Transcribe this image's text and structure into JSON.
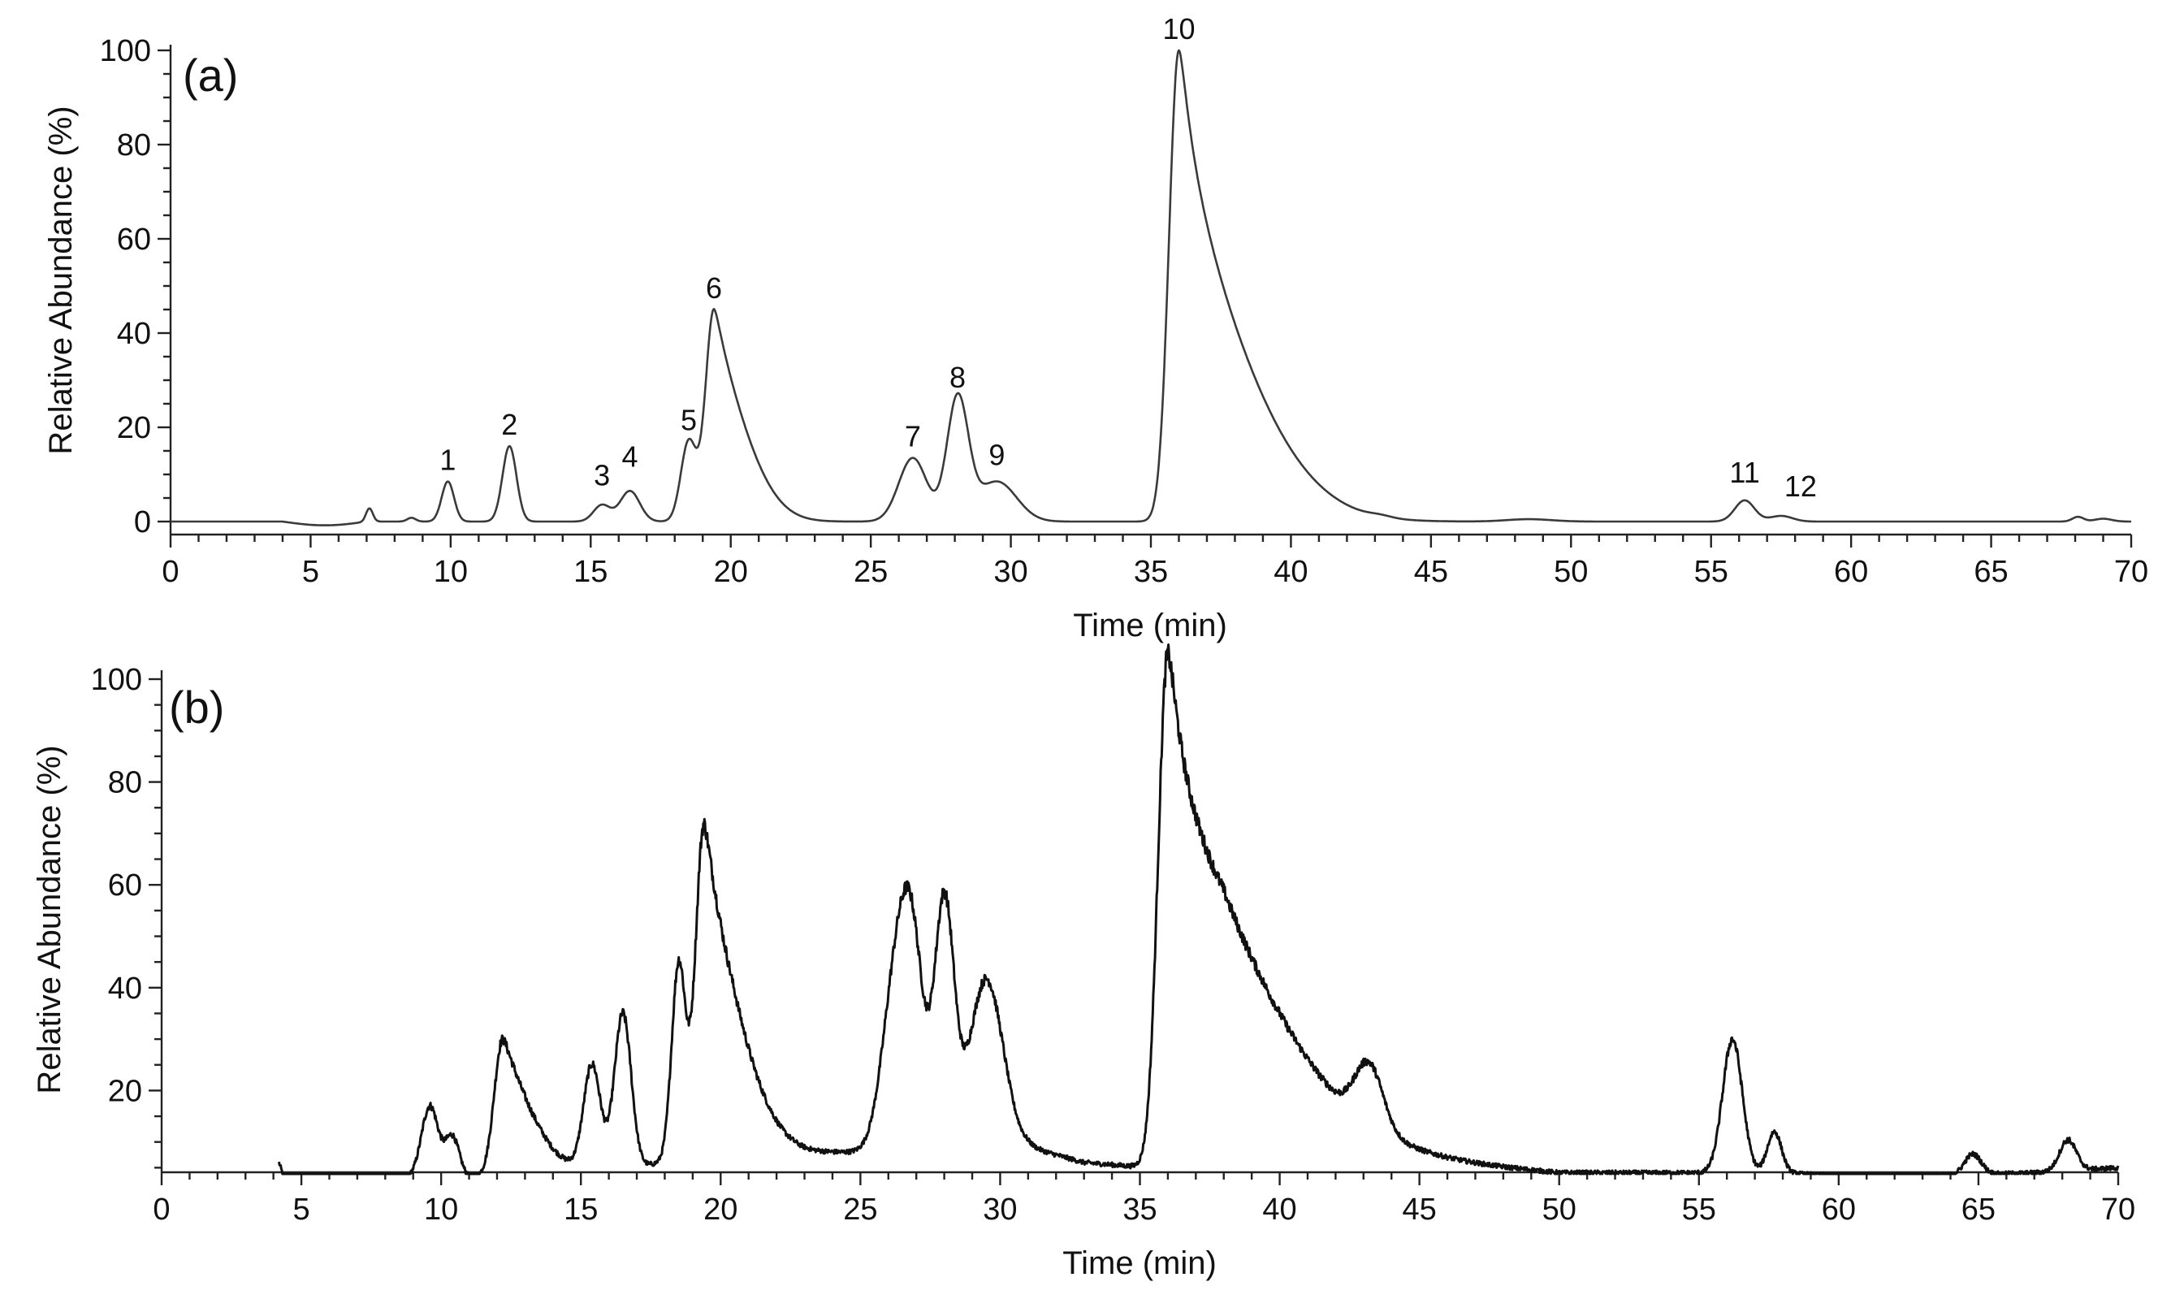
{
  "chart_data": [
    {
      "type": "line",
      "panel_label": "(a)",
      "xlabel": "Time (min)",
      "ylabel": "Relative Abundance (%)",
      "xlim": [
        0,
        70
      ],
      "ylim": [
        -2,
        100
      ],
      "xticks": [
        0,
        5,
        10,
        15,
        20,
        25,
        30,
        35,
        40,
        45,
        50,
        55,
        60,
        65,
        70
      ],
      "yticks": [
        0,
        20,
        40,
        60,
        80,
        100
      ],
      "grid": false,
      "baseline": 0,
      "peaks": [
        {
          "label": "1",
          "x": 9.9,
          "y": 8.5,
          "w": 0.22
        },
        {
          "label": "2",
          "x": 12.1,
          "y": 16,
          "w": 0.25
        },
        {
          "label": "3",
          "x": 15.4,
          "y": 3.5,
          "w": 0.3
        },
        {
          "label": "4",
          "x": 16.4,
          "y": 6.5,
          "w": 0.35
        },
        {
          "label": "5",
          "x": 18.5,
          "y": 17,
          "w": 0.28
        },
        {
          "label": "6",
          "x": 19.4,
          "y": 45,
          "w": 0.3,
          "tail": 0.9
        },
        {
          "label": "7",
          "x": 26.5,
          "y": 13.5,
          "w": 0.5
        },
        {
          "label": "8",
          "x": 28.1,
          "y": 26,
          "w": 0.38
        },
        {
          "label": "9",
          "x": 29.5,
          "y": 8.5,
          "w": 0.7
        },
        {
          "label": "10",
          "x": 36.0,
          "y": 100,
          "w": 0.35,
          "tail": 2.2
        },
        {
          "label": "11",
          "x": 56.2,
          "y": 4.5,
          "w": 0.35
        },
        {
          "label": "12",
          "x": 57.5,
          "y": 1.2,
          "w": 0.4
        }
      ],
      "minor_peaks": [
        {
          "x": 7.1,
          "y": 2.8,
          "w": 0.12
        },
        {
          "x": 8.6,
          "y": 0.8,
          "w": 0.15
        },
        {
          "x": 43.2,
          "y": 0.4,
          "w": 0.4
        },
        {
          "x": 48.5,
          "y": 0.5,
          "w": 0.8
        },
        {
          "x": 68.1,
          "y": 1.0,
          "w": 0.2
        },
        {
          "x": 69.0,
          "y": 0.6,
          "w": 0.3
        }
      ]
    },
    {
      "type": "line",
      "panel_label": "(b)",
      "xlabel": "Time (min)",
      "ylabel": "Relative Abundance (%)",
      "xlim": [
        0,
        70
      ],
      "ylim": [
        0,
        100
      ],
      "xticks": [
        0,
        5,
        10,
        15,
        20,
        25,
        30,
        35,
        40,
        45,
        50,
        55,
        60,
        65,
        70
      ],
      "yticks": [
        20,
        40,
        60,
        80,
        100
      ],
      "grid": false,
      "noise": 0.9,
      "peaks": [
        {
          "x": 9.6,
          "y": 14,
          "w": 0.3
        },
        {
          "x": 10.4,
          "y": 8,
          "w": 0.25
        },
        {
          "x": 12.2,
          "y": 26,
          "w": 0.3,
          "tail": 0.7
        },
        {
          "x": 15.4,
          "y": 20,
          "w": 0.3
        },
        {
          "x": 16.5,
          "y": 30,
          "w": 0.3
        },
        {
          "x": 18.5,
          "y": 38,
          "w": 0.25
        },
        {
          "x": 19.4,
          "y": 64,
          "w": 0.3,
          "tail": 1.0
        },
        {
          "x": 26.3,
          "y": 34,
          "w": 0.5
        },
        {
          "x": 26.9,
          "y": 30,
          "w": 0.4
        },
        {
          "x": 28.0,
          "y": 48,
          "w": 0.35
        },
        {
          "x": 29.5,
          "y": 33,
          "w": 0.6
        },
        {
          "x": 36.0,
          "y": 98,
          "w": 0.35,
          "tail": 3.2
        },
        {
          "x": 43.2,
          "y": 12,
          "w": 0.5
        },
        {
          "x": 56.2,
          "y": 26,
          "w": 0.35
        },
        {
          "x": 57.7,
          "y": 8,
          "w": 0.25
        },
        {
          "x": 64.8,
          "y": 4,
          "w": 0.3
        },
        {
          "x": 68.2,
          "y": 6,
          "w": 0.3
        }
      ],
      "background": [
        [
          4.2,
          6
        ],
        [
          4.5,
          1
        ],
        [
          6,
          1
        ],
        [
          8,
          2.5
        ],
        [
          9,
          3
        ],
        [
          11,
          3
        ],
        [
          13.5,
          5
        ],
        [
          17,
          5
        ],
        [
          20.5,
          9
        ],
        [
          23,
          8
        ],
        [
          25.5,
          8
        ],
        [
          31,
          9
        ],
        [
          33,
          6
        ],
        [
          35.3,
          5
        ],
        [
          38,
          12
        ],
        [
          42,
          8
        ],
        [
          46,
          6
        ],
        [
          50,
          4
        ],
        [
          55,
          4
        ],
        [
          58,
          4
        ],
        [
          61,
          3
        ],
        [
          64,
          3.5
        ],
        [
          67,
          4
        ],
        [
          70,
          5
        ]
      ]
    }
  ]
}
